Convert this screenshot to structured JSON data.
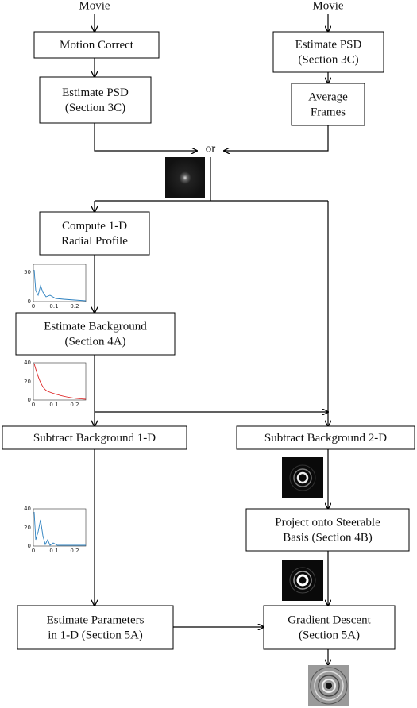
{
  "inputs": [
    "Movie",
    "Movie"
  ],
  "or_label": "or",
  "nodes": [
    {
      "lines": [
        "Motion Correct"
      ]
    },
    {
      "lines": [
        "Estimate PSD",
        "(Section 3C)"
      ]
    },
    {
      "lines": [
        "Estimate PSD",
        "(Section 3C)"
      ]
    },
    {
      "lines": [
        "Average",
        "Frames"
      ]
    },
    {
      "lines": [
        "Compute 1-D",
        "Radial Profile"
      ]
    },
    {
      "lines": [
        "Estimate Background",
        "(Section 4A)"
      ]
    },
    {
      "lines": [
        "Subtract Background 1-D"
      ]
    },
    {
      "lines": [
        "Subtract Background 2-D"
      ]
    },
    {
      "lines": [
        "Project onto Steerable",
        "Basis (Section 4B)"
      ]
    },
    {
      "lines": [
        "Estimate Parameters",
        "in 1-D (Section 5A)"
      ]
    },
    {
      "lines": [
        "Gradient Descent",
        "(Section 5A)"
      ]
    }
  ],
  "plots": [
    {
      "yticks": [
        "50",
        "0"
      ],
      "xticks": [
        "0",
        "0.1",
        "0.2"
      ]
    },
    {
      "yticks": [
        "40",
        "20",
        "0"
      ],
      "xticks": [
        "0",
        "0.1",
        "0.2"
      ]
    },
    {
      "yticks": [
        "40",
        "20",
        "0"
      ],
      "xticks": [
        "0",
        "0.1",
        "0.2"
      ]
    }
  ]
}
